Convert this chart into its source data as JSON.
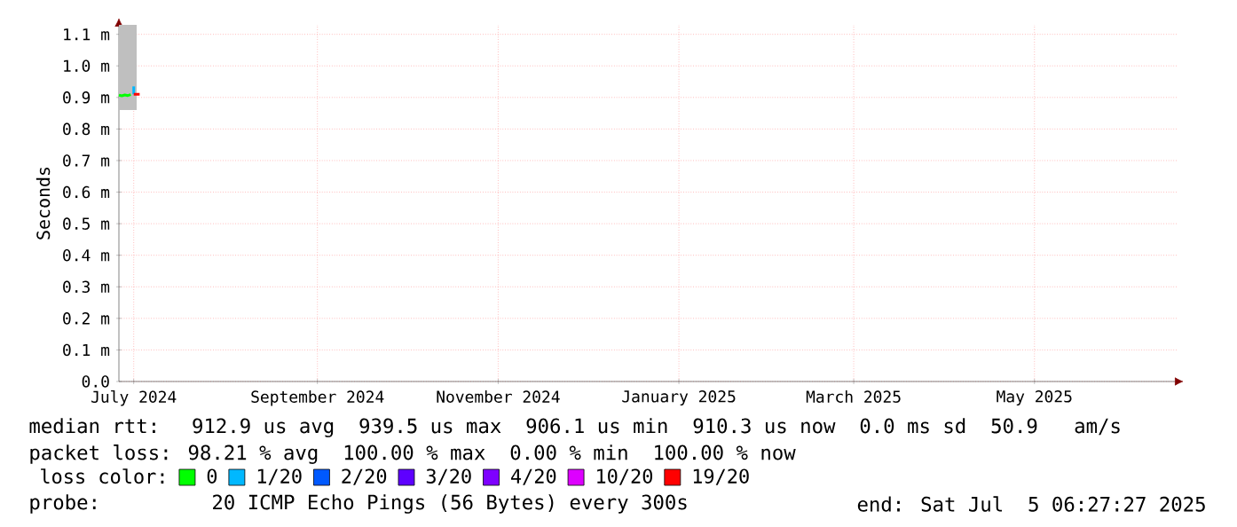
{
  "chart_data": {
    "type": "line",
    "ylabel": "Seconds",
    "legend_title": "loss color:",
    "legend": "bottom",
    "grid": true,
    "xlim": [
      "2024-06-26",
      "2025-06-18"
    ],
    "xticks": [
      {
        "value": "2024-07-01",
        "label": "July 2024"
      },
      {
        "value": "2024-09-01",
        "label": "September 2024"
      },
      {
        "value": "2024-11-01",
        "label": "November 2024"
      },
      {
        "value": "2025-01-01",
        "label": "January 2025"
      },
      {
        "value": "2025-03-01",
        "label": "March 2025"
      },
      {
        "value": "2025-05-01",
        "label": "May 2025"
      }
    ],
    "ylim": [
      0,
      1.13
    ],
    "yticks": [
      {
        "value": 0,
        "label": "0.0"
      },
      {
        "value": 0.1,
        "label": "0.1 m"
      },
      {
        "value": 0.2,
        "label": "0.2 m"
      },
      {
        "value": 0.3,
        "label": "0.3 m"
      },
      {
        "value": 0.4,
        "label": "0.4 m"
      },
      {
        "value": 0.5,
        "label": "0.5 m"
      },
      {
        "value": 0.6,
        "label": "0.6 m"
      },
      {
        "value": 0.7,
        "label": "0.7 m"
      },
      {
        "value": 0.8,
        "label": "0.8 m"
      },
      {
        "value": 0.9,
        "label": "0.9 m"
      },
      {
        "value": 1.0,
        "label": "1.0 m"
      },
      {
        "value": 1.1,
        "label": "1.1 m"
      }
    ],
    "series": [
      {
        "name": "0",
        "color": "#00ff00",
        "x": [
          "2024-06-26",
          "2024-06-27",
          "2024-06-28",
          "2024-06-29",
          "2024-06-30",
          "2024-07-01",
          "2024-07-02"
        ],
        "values": [
          0.907,
          0.905,
          0.908,
          0.906,
          0.909,
          null,
          null
        ],
        "lower": [
          0.86,
          0.86,
          0.86,
          0.86,
          0.86,
          0.86,
          0.86
        ],
        "upper": [
          1.13,
          1.13,
          1.13,
          1.13,
          1.13,
          1.13,
          1.13
        ]
      },
      {
        "name": "1/20",
        "color": "#00b8ff",
        "x": [
          "2024-07-01",
          "2024-07-01"
        ],
        "values": [
          0.91,
          0.935
        ]
      },
      {
        "name": "2/20",
        "color": "#0059ff"
      },
      {
        "name": "3/20",
        "color": "#5e00ff"
      },
      {
        "name": "4/20",
        "color": "#7e00ff"
      },
      {
        "name": "10/20",
        "color": "#dd00ff"
      },
      {
        "name": "19/20",
        "color": "#ff0000",
        "x": [
          "2024-07-01",
          "2024-07-03"
        ],
        "values": [
          0.91,
          0.91
        ]
      }
    ],
    "annotations": [
      "median rtt:  912.9 us avg  939.5 us max  906.1 us min  910.3 us now  0.0 ms sd  50.9   am/s",
      "packet loss: 98.21 % avg  100.00 % max  0.00 % min  100.00 % now",
      "probe:       20 ICMP Echo Pings (56 Bytes) every 300s",
      "end: Sat Jul  5 06:27:27 2025"
    ]
  }
}
